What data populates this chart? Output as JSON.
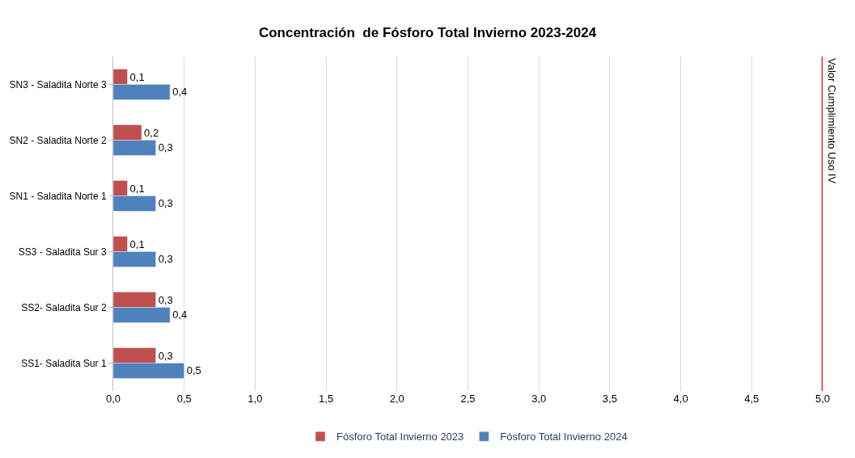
{
  "chart_data": {
    "type": "bar",
    "orientation": "horizontal",
    "title": "Concentración  de Fósforo Total Invierno 2023-2024",
    "categories": [
      "SN3 - Saladita Norte 3",
      "SN2 - Saladita Norte 2",
      "SN1 - Saladita Norte 1",
      "SS3 - Saladita Sur 3",
      "SS2- Saladita Sur 2",
      "SS1- Saladita Sur 1"
    ],
    "series": [
      {
        "name": "Fósforo Total Invierno 2023",
        "color": "#c0504d",
        "values": [
          0.1,
          0.2,
          0.1,
          0.1,
          0.3,
          0.3
        ],
        "value_labels": [
          "0,1",
          "0,2",
          "0,1",
          "0,1",
          "0,3",
          "0,3"
        ]
      },
      {
        "name": "Fósforo Total Invierno 2024",
        "color": "#4f81bd",
        "values": [
          0.4,
          0.3,
          0.3,
          0.3,
          0.4,
          0.5
        ],
        "value_labels": [
          "0,4",
          "0,3",
          "0,3",
          "0,3",
          "0,4",
          "0,5"
        ]
      }
    ],
    "xlim": [
      0,
      5
    ],
    "xticks": [
      {
        "value": 0,
        "label": "0,0"
      },
      {
        "value": 0.5,
        "label": "0,5"
      },
      {
        "value": 1,
        "label": "1,0"
      },
      {
        "value": 1.5,
        "label": "1,5"
      },
      {
        "value": 2,
        "label": "2,0"
      },
      {
        "value": 2.5,
        "label": "2,5"
      },
      {
        "value": 3,
        "label": "3,0"
      },
      {
        "value": 3.5,
        "label": "3,5"
      },
      {
        "value": 4,
        "label": "4,0"
      },
      {
        "value": 4.5,
        "label": "4,5"
      },
      {
        "value": 5,
        "label": "5,0"
      }
    ],
    "ref_lines": [
      {
        "axis": "x",
        "value": 5,
        "label": "Valor Cumplimiento Uso IV",
        "color": "#ff0000"
      }
    ],
    "grid": "x",
    "legend": "bottom"
  }
}
